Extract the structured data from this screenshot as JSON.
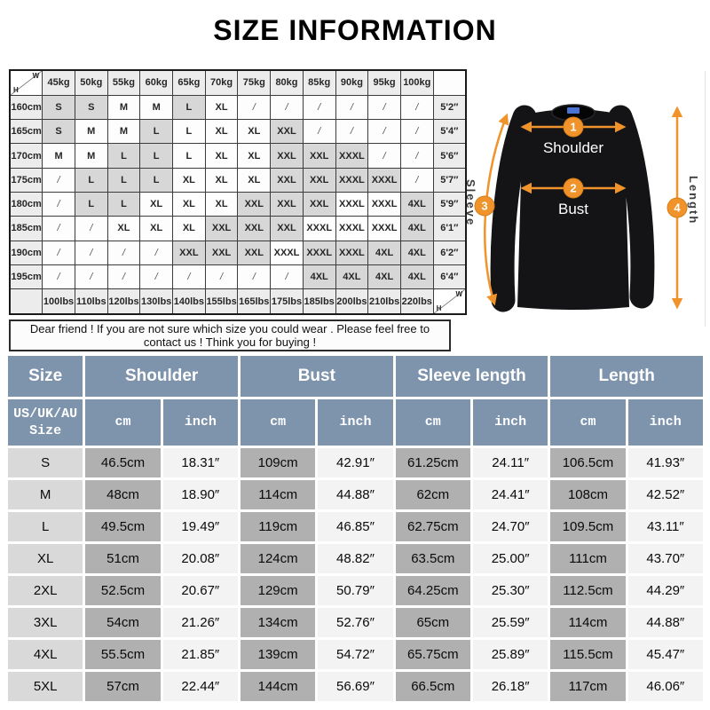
{
  "title": "SIZE INFORMATION",
  "note": "Dear friend ! If you are not sure which size you could wear . Please feel free to contact us ! Think you for buying !",
  "colors": {
    "accent": "#F0932A",
    "header_blue": "#7E93AC",
    "cm_cell_gray": "#B1B0B0",
    "inch_cell_light": "#F4F3F3",
    "size_cell_gray": "#D9D9D9",
    "matrix_shade_gray": "#D7D7D7"
  },
  "matrix": {
    "corner": {
      "w": "W",
      "h": "H"
    },
    "weights": [
      "45kg",
      "50kg",
      "55kg",
      "60kg",
      "65kg",
      "70kg",
      "75kg",
      "80kg",
      "85kg",
      "90kg",
      "95kg",
      "100kg"
    ],
    "rows": [
      {
        "height": "160cm",
        "cells": [
          "S",
          "S",
          "M",
          "M",
          "L",
          "XL",
          "/",
          "/",
          "/",
          "/",
          "/",
          "/"
        ],
        "shaded": [
          1,
          1,
          0,
          0,
          1,
          0,
          0,
          0,
          0,
          0,
          0,
          0
        ],
        "feet": "5'2″"
      },
      {
        "height": "165cm",
        "cells": [
          "S",
          "M",
          "M",
          "L",
          "L",
          "XL",
          "XL",
          "XXL",
          "/",
          "/",
          "/",
          "/"
        ],
        "shaded": [
          1,
          0,
          0,
          1,
          0,
          0,
          0,
          1,
          0,
          0,
          0,
          0
        ],
        "feet": "5'4″"
      },
      {
        "height": "170cm",
        "cells": [
          "M",
          "M",
          "L",
          "L",
          "L",
          "XL",
          "XL",
          "XXL",
          "XXL",
          "XXXL",
          "/",
          "/"
        ],
        "shaded": [
          0,
          0,
          1,
          1,
          0,
          0,
          0,
          1,
          1,
          1,
          0,
          0
        ],
        "feet": "5'6″"
      },
      {
        "height": "175cm",
        "cells": [
          "/",
          "L",
          "L",
          "L",
          "XL",
          "XL",
          "XL",
          "XXL",
          "XXL",
          "XXXL",
          "XXXL",
          "/"
        ],
        "shaded": [
          0,
          1,
          1,
          1,
          0,
          0,
          0,
          1,
          1,
          1,
          1,
          0
        ],
        "feet": "5'7″"
      },
      {
        "height": "180cm",
        "cells": [
          "/",
          "L",
          "L",
          "XL",
          "XL",
          "XL",
          "XXL",
          "XXL",
          "XXL",
          "XXXL",
          "XXXL",
          "4XL"
        ],
        "shaded": [
          0,
          1,
          1,
          0,
          0,
          0,
          1,
          1,
          1,
          0,
          0,
          1
        ],
        "feet": "5'9″"
      },
      {
        "height": "185cm",
        "cells": [
          "/",
          "/",
          "XL",
          "XL",
          "XL",
          "XXL",
          "XXL",
          "XXL",
          "XXXL",
          "XXXL",
          "XXXL",
          "4XL"
        ],
        "shaded": [
          0,
          0,
          0,
          0,
          0,
          1,
          1,
          1,
          0,
          0,
          0,
          1
        ],
        "feet": "6'1″"
      },
      {
        "height": "190cm",
        "cells": [
          "/",
          "/",
          "/",
          "/",
          "XXL",
          "XXL",
          "XXL",
          "XXXL",
          "XXXL",
          "XXXL",
          "4XL",
          "4XL"
        ],
        "shaded": [
          0,
          0,
          0,
          0,
          1,
          1,
          1,
          0,
          1,
          1,
          1,
          1
        ],
        "feet": "6'2″"
      },
      {
        "height": "195cm",
        "cells": [
          "/",
          "/",
          "/",
          "/",
          "/",
          "/",
          "/",
          "/",
          "4XL",
          "4XL",
          "4XL",
          "4XL"
        ],
        "shaded": [
          0,
          0,
          0,
          0,
          0,
          0,
          0,
          0,
          1,
          1,
          1,
          1
        ],
        "feet": "6'4″"
      }
    ],
    "lbs": [
      "100lbs",
      "110lbs",
      "120lbs",
      "130lbs",
      "140lbs",
      "155lbs",
      "165lbs",
      "175lbs",
      "185lbs",
      "200lbs",
      "210lbs",
      "220lbs"
    ]
  },
  "diagram": {
    "points": [
      {
        "num": "1",
        "label": "Shoulder"
      },
      {
        "num": "2",
        "label": "Bust"
      },
      {
        "num": "3",
        "label": "Sleeve"
      },
      {
        "num": "4",
        "label": "Length"
      }
    ]
  },
  "size_table": {
    "groups": [
      "Size",
      "Shoulder",
      "Bust",
      "Sleeve length",
      "Length"
    ],
    "subheader": {
      "size_label": "US/UK/AU\nSize",
      "cm": "cm",
      "inch": "inch"
    },
    "rows": [
      [
        "S",
        "46.5cm",
        "18.31″",
        "109cm",
        "42.91″",
        "61.25cm",
        "24.11″",
        "106.5cm",
        "41.93″"
      ],
      [
        "M",
        "48cm",
        "18.90″",
        "114cm",
        "44.88″",
        "62cm",
        "24.41″",
        "108cm",
        "42.52″"
      ],
      [
        "L",
        "49.5cm",
        "19.49″",
        "119cm",
        "46.85″",
        "62.75cm",
        "24.70″",
        "109.5cm",
        "43.11″"
      ],
      [
        "XL",
        "51cm",
        "20.08″",
        "124cm",
        "48.82″",
        "63.5cm",
        "25.00″",
        "111cm",
        "43.70″"
      ],
      [
        "2XL",
        "52.5cm",
        "20.67″",
        "129cm",
        "50.79″",
        "64.25cm",
        "25.30″",
        "112.5cm",
        "44.29″"
      ],
      [
        "3XL",
        "54cm",
        "21.26″",
        "134cm",
        "52.76″",
        "65cm",
        "25.59″",
        "114cm",
        "44.88″"
      ],
      [
        "4XL",
        "55.5cm",
        "21.85″",
        "139cm",
        "54.72″",
        "65.75cm",
        "25.89″",
        "115.5cm",
        "45.47″"
      ],
      [
        "5XL",
        "57cm",
        "22.44″",
        "144cm",
        "56.69″",
        "66.5cm",
        "26.18″",
        "117cm",
        "46.06″"
      ]
    ]
  }
}
